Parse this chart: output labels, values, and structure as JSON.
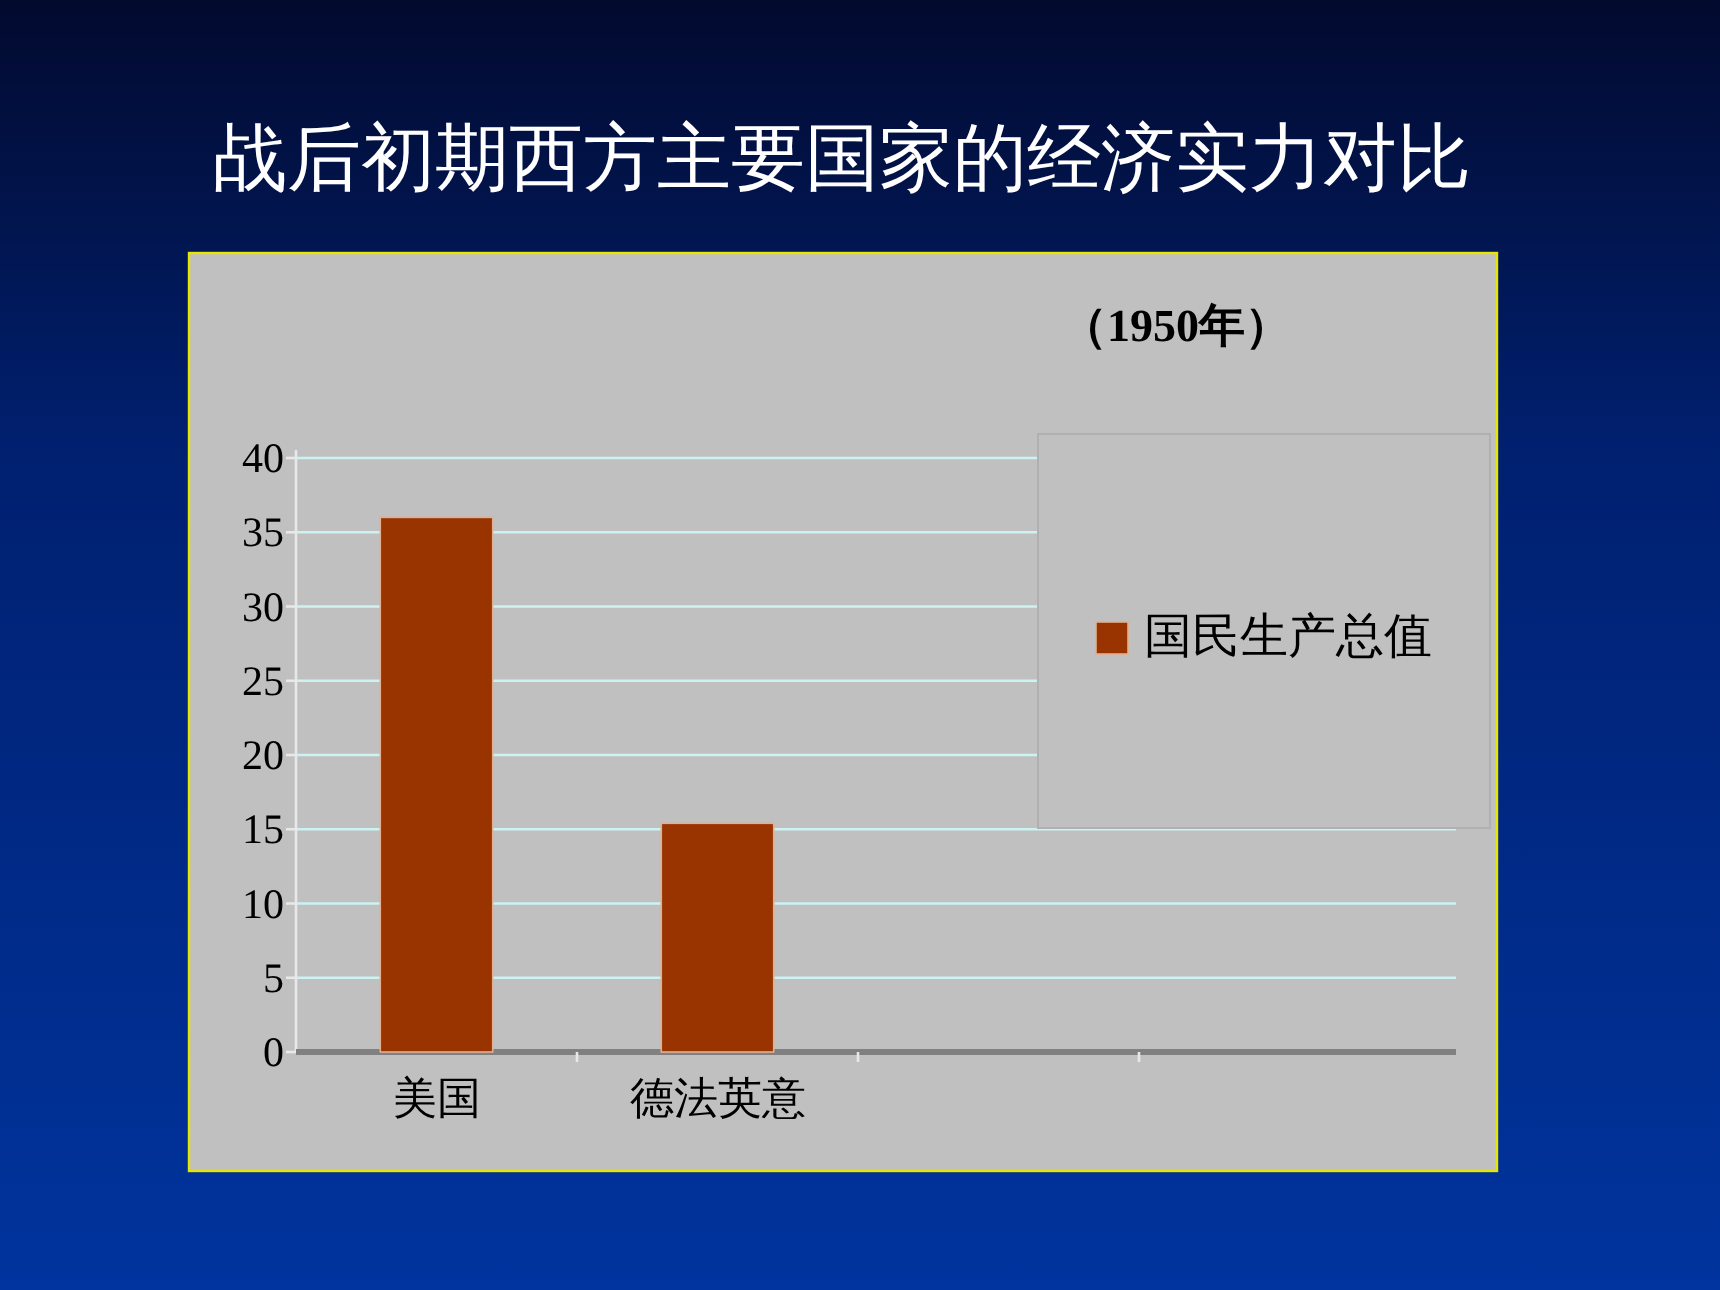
{
  "chart_data": {
    "type": "bar",
    "title": "战后初期西方主要国家的经济实力对比",
    "subtitle": "（1950年）",
    "categories": [
      "美国",
      "德法英意",
      null,
      null
    ],
    "series": [
      {
        "name": "国民生产总值",
        "color": "#993300",
        "values": [
          36,
          15.4,
          null,
          null
        ]
      }
    ],
    "ylim": [
      0,
      40
    ],
    "yticks": [
      0,
      5,
      10,
      15,
      20,
      25,
      30,
      35,
      40
    ],
    "grid": "y",
    "legend": "right"
  }
}
